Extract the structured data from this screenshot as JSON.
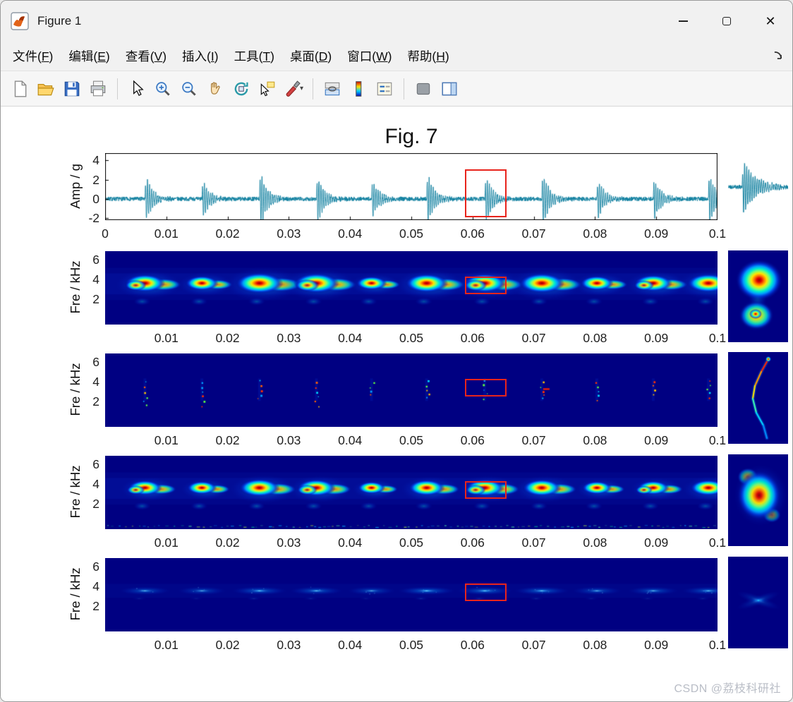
{
  "window": {
    "title": "Figure 1"
  },
  "menu": {
    "items": [
      {
        "pre": "文件(",
        "key": "F",
        "post": ")"
      },
      {
        "pre": "编辑(",
        "key": "E",
        "post": ")"
      },
      {
        "pre": "查看(",
        "key": "V",
        "post": ")"
      },
      {
        "pre": "插入(",
        "key": "I",
        "post": ")"
      },
      {
        "pre": "工具(",
        "key": "T",
        "post": ")"
      },
      {
        "pre": "桌面(",
        "key": "D",
        "post": ")"
      },
      {
        "pre": "窗口(",
        "key": "W",
        "post": ")"
      },
      {
        "pre": "帮助(",
        "key": "H",
        "post": ")"
      }
    ]
  },
  "toolbar": {
    "buttons": [
      "new-file",
      "open-file",
      "save-file",
      "print",
      "edit-plot",
      "zoom-in",
      "zoom-out",
      "pan",
      "rotate-3d",
      "data-cursor",
      "brush",
      "link-plots",
      "insert-colorbar",
      "insert-legend",
      "hide-plot-tools",
      "show-plot-tools"
    ]
  },
  "figure": {
    "title": "Fig. 7",
    "highlight_color": "#e8241c"
  },
  "watermark": "CSDN @荔枝科研社",
  "chart_data": [
    {
      "type": "line",
      "name": "vibration-time-waveform",
      "title": "Fig. 7",
      "ylabel": "Amp / g",
      "xlim": [
        0,
        0.1
      ],
      "ylim": [
        -2.2,
        4.75
      ],
      "xticks": [
        0,
        0.01,
        0.02,
        0.03,
        0.04,
        0.05,
        0.06,
        0.07,
        0.08,
        0.09,
        0.1
      ],
      "xtick_labels": [
        "0",
        "0.01",
        "0.02",
        "0.03",
        "0.04",
        "0.05",
        "0.06",
        "0.07",
        "0.08",
        "0.09",
        "0.1"
      ],
      "yticks": [
        4,
        2,
        0,
        -2
      ],
      "line_color": "#0f7f9f",
      "noise_amp": 0.22,
      "carrier_freq_hz": 3000,
      "decay_tau_s": 0.0011,
      "burst_times_s": [
        0.0065,
        0.0158,
        0.0252,
        0.0345,
        0.0435,
        0.0525,
        0.062,
        0.0713,
        0.0803,
        0.0895,
        0.0985
      ],
      "burst_amps_g": [
        2.7,
        2.2,
        3.3,
        2.9,
        2.2,
        3.0,
        2.8,
        3.2,
        2.4,
        2.6,
        3.0
      ],
      "highlight_window_s": [
        0.0588,
        0.066
      ],
      "highlight_amp_g": [
        -2.2,
        3.1
      ],
      "inset": {
        "style": "zoom-waveform-burst"
      }
    },
    {
      "type": "heatmap",
      "name": "stft-spectrogram",
      "ylabel": "Fre / kHz",
      "colormap": "jet",
      "background": "#000082",
      "xlim": [
        0,
        0.1
      ],
      "ylim": [
        -0.6,
        6.85
      ],
      "xticks": [
        0.01,
        0.02,
        0.03,
        0.04,
        0.05,
        0.06,
        0.07,
        0.08,
        0.09,
        0.1
      ],
      "xtick_labels": [
        "0.01",
        "0.02",
        "0.03",
        "0.04",
        "0.05",
        "0.06",
        "0.07",
        "0.08",
        "0.09",
        "0.1"
      ],
      "yticks": [
        6,
        4,
        2
      ],
      "style": "smooth-blobs",
      "blob_center_khz": 3.6,
      "burst_times_s": [
        0.0065,
        0.0158,
        0.0252,
        0.0345,
        0.0435,
        0.0525,
        0.062,
        0.0713,
        0.0803,
        0.0895,
        0.0985
      ],
      "burst_intensity": [
        0.85,
        0.7,
        1.0,
        0.95,
        0.65,
        0.9,
        0.9,
        0.95,
        0.7,
        0.8,
        0.9
      ],
      "highlight_window_s": [
        0.0588,
        0.066
      ],
      "highlight_band_khz": [
        2.2,
        4.3
      ],
      "inset": {
        "style": "zoom-blob-pair"
      }
    },
    {
      "type": "heatmap",
      "name": "sparse-tf-ridge",
      "ylabel": "Fre / kHz",
      "colormap": "jet",
      "background": "#000082",
      "xlim": [
        0,
        0.1
      ],
      "ylim": [
        -0.6,
        6.85
      ],
      "xticks": [
        0.01,
        0.02,
        0.03,
        0.04,
        0.05,
        0.06,
        0.07,
        0.08,
        0.09,
        0.1
      ],
      "xtick_labels": [
        "0.01",
        "0.02",
        "0.03",
        "0.04",
        "0.05",
        "0.06",
        "0.07",
        "0.08",
        "0.09",
        "0.1"
      ],
      "yticks": [
        6,
        4,
        2
      ],
      "style": "sparse-ridge",
      "blob_center_khz": 3.6,
      "burst_times_s": [
        0.0065,
        0.0158,
        0.0252,
        0.0345,
        0.0435,
        0.0525,
        0.062,
        0.0713,
        0.0803,
        0.0895,
        0.0985
      ],
      "burst_intensity": [
        0.8,
        0.7,
        0.9,
        0.85,
        0.7,
        0.85,
        0.9,
        1.0,
        0.7,
        0.8,
        0.85
      ],
      "highlight_window_s": [
        0.0588,
        0.066
      ],
      "highlight_band_khz": [
        2.2,
        4.3
      ],
      "inset": {
        "style": "zoom-ridge-curve"
      }
    },
    {
      "type": "heatmap",
      "name": "stft-spectrogram-2",
      "ylabel": "Fre / kHz",
      "colormap": "jet",
      "background": "#000082",
      "xlim": [
        0,
        0.1
      ],
      "ylim": [
        -0.6,
        6.85
      ],
      "xticks": [
        0.01,
        0.02,
        0.03,
        0.04,
        0.05,
        0.06,
        0.07,
        0.08,
        0.09,
        0.1
      ],
      "xtick_labels": [
        "0.01",
        "0.02",
        "0.03",
        "0.04",
        "0.05",
        "0.06",
        "0.07",
        "0.08",
        "0.09",
        "0.1"
      ],
      "yticks": [
        6,
        4,
        2
      ],
      "style": "smooth-blobs-baseline",
      "blob_center_khz": 3.6,
      "burst_times_s": [
        0.0065,
        0.0158,
        0.0252,
        0.0345,
        0.0435,
        0.0525,
        0.062,
        0.0713,
        0.0803,
        0.0895,
        0.0985
      ],
      "burst_intensity": [
        0.8,
        0.7,
        0.95,
        0.9,
        0.65,
        0.85,
        0.9,
        0.9,
        0.7,
        0.75,
        0.85
      ],
      "highlight_window_s": [
        0.0588,
        0.066
      ],
      "highlight_band_khz": [
        2.2,
        4.3
      ],
      "inset": {
        "style": "zoom-diffuse-blob"
      }
    },
    {
      "type": "heatmap",
      "name": "faint-tf-map",
      "ylabel": "Fre / kHz",
      "colormap": "jet",
      "background": "#000082",
      "xlim": [
        0,
        0.1
      ],
      "ylim": [
        -0.6,
        6.85
      ],
      "xticks": [
        0.01,
        0.02,
        0.03,
        0.04,
        0.05,
        0.06,
        0.07,
        0.08,
        0.09,
        0.1
      ],
      "xtick_labels": [
        "0.01",
        "0.02",
        "0.03",
        "0.04",
        "0.05",
        "0.06",
        "0.07",
        "0.08",
        "0.09",
        "0.1"
      ],
      "yticks": [
        6,
        4,
        2
      ],
      "style": "faint-wisps",
      "blob_center_khz": 3.6,
      "burst_times_s": [
        0.0065,
        0.0158,
        0.0252,
        0.0345,
        0.0435,
        0.0525,
        0.062,
        0.0713,
        0.0803,
        0.0895,
        0.0985
      ],
      "burst_intensity": [
        0.6,
        0.5,
        0.8,
        0.7,
        0.5,
        0.9,
        0.85,
        0.8,
        0.55,
        0.6,
        0.7
      ],
      "highlight_window_s": [
        0.0588,
        0.066
      ],
      "highlight_band_khz": [
        2.2,
        4.3
      ],
      "inset": {
        "style": "zoom-faint-cross"
      }
    }
  ]
}
